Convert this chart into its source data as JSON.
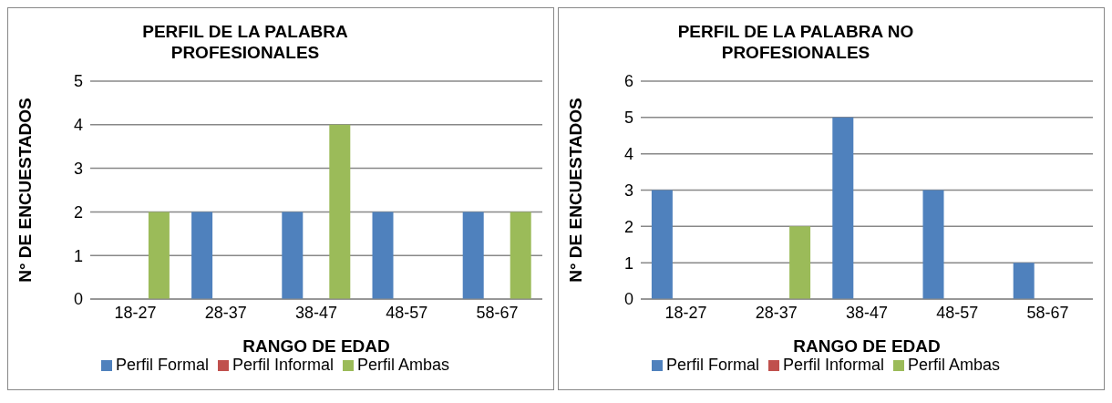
{
  "chart_data": [
    {
      "type": "bar",
      "title": "PERFIL DE LA PALABRA PROFESIONALES",
      "xlabel": "RANGO DE EDAD",
      "ylabel": "N° DE ENCUESTADOS",
      "categories": [
        "18-27",
        "28-37",
        "38-47",
        "48-57",
        "58-67"
      ],
      "series": [
        {
          "name": "Perfil Formal",
          "color": "#4f81bd",
          "values": [
            0,
            2,
            2,
            2,
            2
          ]
        },
        {
          "name": "Perfil Informal",
          "color": "#c0504d",
          "values": [
            0,
            0,
            0,
            0,
            0
          ]
        },
        {
          "name": "Perfil Ambas",
          "color": "#9bbb59",
          "values": [
            2,
            0,
            4,
            0,
            2
          ]
        }
      ],
      "ylim": [
        0,
        5
      ],
      "yticks": [
        0,
        1,
        2,
        3,
        4,
        5
      ],
      "grid": "y",
      "legend": "bottom"
    },
    {
      "type": "bar",
      "title": "PERFIL DE LA PALABRA  NO PROFESIONALES",
      "xlabel": "RANGO DE EDAD",
      "ylabel": "N° DE ENCUESTADOS",
      "categories": [
        "18-27",
        "28-37",
        "38-47",
        "48-57",
        "58-67"
      ],
      "series": [
        {
          "name": "Perfil Formal",
          "color": "#4f81bd",
          "values": [
            3,
            0,
            5,
            3,
            1
          ]
        },
        {
          "name": "Perfil Informal",
          "color": "#c0504d",
          "values": [
            0,
            0,
            0,
            0,
            0
          ]
        },
        {
          "name": "Perfil Ambas",
          "color": "#9bbb59",
          "values": [
            0,
            2,
            0,
            0,
            0
          ]
        }
      ],
      "ylim": [
        0,
        6
      ],
      "yticks": [
        0,
        1,
        2,
        3,
        4,
        5,
        6
      ],
      "grid": "y",
      "legend": "bottom"
    }
  ]
}
